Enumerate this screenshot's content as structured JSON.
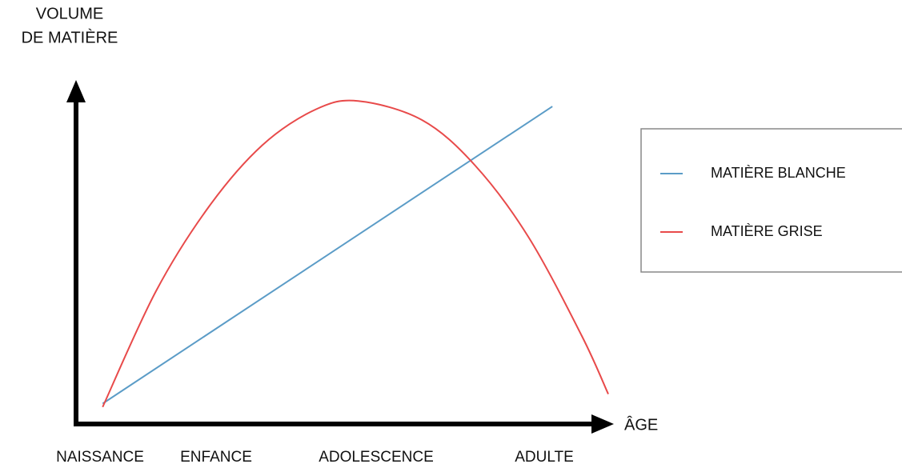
{
  "chart_data": {
    "type": "line",
    "y_label": [
      "VOLUME",
      "DE MATIÈRE"
    ],
    "x_label": "ÂGE",
    "categories": [
      "NAISSANCE",
      "ENFANCE",
      "ADOLESCENCE",
      "ADULTE"
    ],
    "xlim": [
      0,
      100
    ],
    "ylim": [
      0,
      100
    ],
    "legend": "right",
    "series": [
      {
        "name": "MATIÈRE BLANCHE",
        "color": "#5b9cc7",
        "x": [
          5,
          89.5
        ],
        "values": [
          6,
          93.4
        ]
      },
      {
        "name": "MATIÈRE GRISE",
        "color": "#e84a4a",
        "x": [
          5,
          15,
          25,
          35,
          45,
          53,
          65,
          75,
          85,
          95,
          100
        ],
        "values": [
          5,
          39,
          64,
          82,
          92.5,
          95,
          89.4,
          76,
          55,
          26,
          8.8
        ]
      }
    ]
  }
}
